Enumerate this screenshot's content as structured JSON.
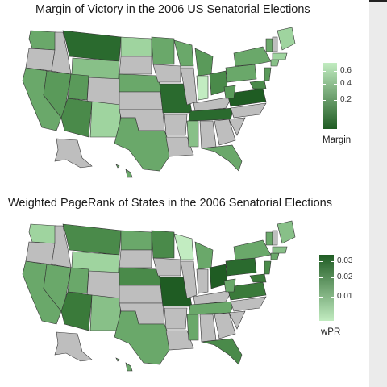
{
  "panels": [
    {
      "title": "Margin of Victory in the 2006 US Senatorial Elections",
      "legend": {
        "title": "Margin",
        "ticks": [
          "0.6",
          "0.4",
          "0.2"
        ],
        "colors": {
          "low": "#1f5c23",
          "high": "#c2ecc1"
        }
      },
      "no_data_color": "#bebebe"
    },
    {
      "title": "Weighted PageRank of States in the 2006 Senatorial Elections",
      "legend": {
        "title": "wPR",
        "ticks": [
          "0.03",
          "0.02",
          "0.01"
        ],
        "colors": {
          "low": "#c2ecc1",
          "high": "#1f5c23"
        }
      },
      "no_data_color": "#bebebe"
    }
  ]
}
